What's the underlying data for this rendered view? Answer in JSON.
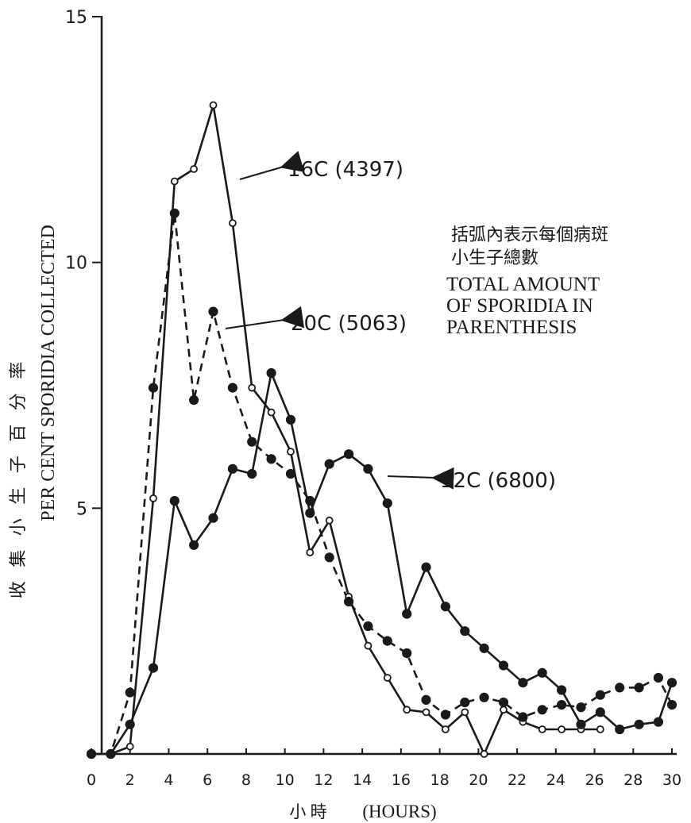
{
  "chart_data": {
    "type": "line",
    "xlabel_cn": "小 時",
    "xlabel": "(HOURS)",
    "ylabel_cn": "收 集 小 生 子 百 分 率",
    "ylabel": "PER CENT SPORIDIA COLLECTED",
    "note_cn_line1": "括弧內表示每個病斑",
    "note_cn_line2": "小生子總數",
    "note_line1": "TOTAL AMOUNT",
    "note_line2": "OF SPORIDIA IN",
    "note_line3": "PARENTHESIS",
    "xlim": [
      0,
      30
    ],
    "ylim": [
      0,
      15
    ],
    "xticks": [
      "0",
      "2",
      "4",
      "6",
      "8",
      "10",
      "12",
      "14",
      "16",
      "18",
      "20",
      "22",
      "24",
      "26",
      "28",
      "30"
    ],
    "yticks": [
      "5",
      "10",
      "15"
    ],
    "series": [
      {
        "name": "16C (4397)",
        "marker": "open",
        "dash": false,
        "x": [
          0,
          1,
          2,
          3.2,
          4.3,
          5.3,
          6.3,
          7.3,
          8.3,
          9.3,
          10.3,
          11.3,
          12.3,
          13.3,
          14.3,
          15.3,
          16.3,
          17.3,
          18.3,
          19.3,
          20.3,
          21.3,
          22.3,
          23.3,
          24.3,
          25.3,
          26.3
        ],
        "y": [
          0,
          0,
          0.15,
          5.2,
          11.65,
          11.9,
          13.2,
          10.8,
          7.45,
          6.95,
          6.15,
          4.1,
          4.75,
          3.2,
          2.2,
          1.55,
          0.9,
          0.85,
          0.5,
          0.85,
          0,
          0.9,
          0.65,
          0.5,
          0.5,
          0.5,
          0.5
        ]
      },
      {
        "name": "20C (5063)",
        "marker": "filled",
        "dash": true,
        "x": [
          0,
          1,
          2,
          3.2,
          4.3,
          5.3,
          6.3,
          7.3,
          8.3,
          9.3,
          10.3,
          11.3,
          12.3,
          13.3,
          14.3,
          15.3,
          16.3,
          17.3,
          18.3,
          19.3,
          20.3,
          21.3,
          22.3,
          23.3,
          24.3,
          25.3,
          26.3,
          27.3,
          28.3,
          29.3,
          30
        ],
        "y": [
          0,
          0,
          1.25,
          7.45,
          11.0,
          7.2,
          9.0,
          7.45,
          6.35,
          6.0,
          5.7,
          5.15,
          4.0,
          3.1,
          2.6,
          2.3,
          2.05,
          1.1,
          0.8,
          1.05,
          1.15,
          1.05,
          0.75,
          0.9,
          1.0,
          0.95,
          1.2,
          1.35,
          1.35,
          1.55,
          1.0
        ]
      },
      {
        "name": "12C (6800)",
        "marker": "filled",
        "dash": false,
        "x": [
          0,
          1,
          2,
          3.2,
          4.3,
          5.3,
          6.3,
          7.3,
          8.3,
          9.3,
          10.3,
          11.3,
          12.3,
          13.3,
          14.3,
          15.3,
          16.3,
          17.3,
          18.3,
          19.3,
          20.3,
          21.3,
          22.3,
          23.3,
          24.3,
          25.3,
          26.3,
          27.3,
          28.3,
          29.3,
          30
        ],
        "y": [
          0,
          0,
          0.6,
          1.75,
          5.15,
          4.25,
          4.8,
          5.8,
          5.7,
          7.75,
          6.8,
          4.9,
          5.9,
          6.1,
          5.8,
          5.1,
          2.85,
          3.8,
          3.0,
          2.5,
          2.15,
          1.8,
          1.45,
          1.65,
          1.3,
          0.6,
          0.85,
          0.5,
          0.6,
          0.65,
          1.45
        ]
      }
    ]
  }
}
